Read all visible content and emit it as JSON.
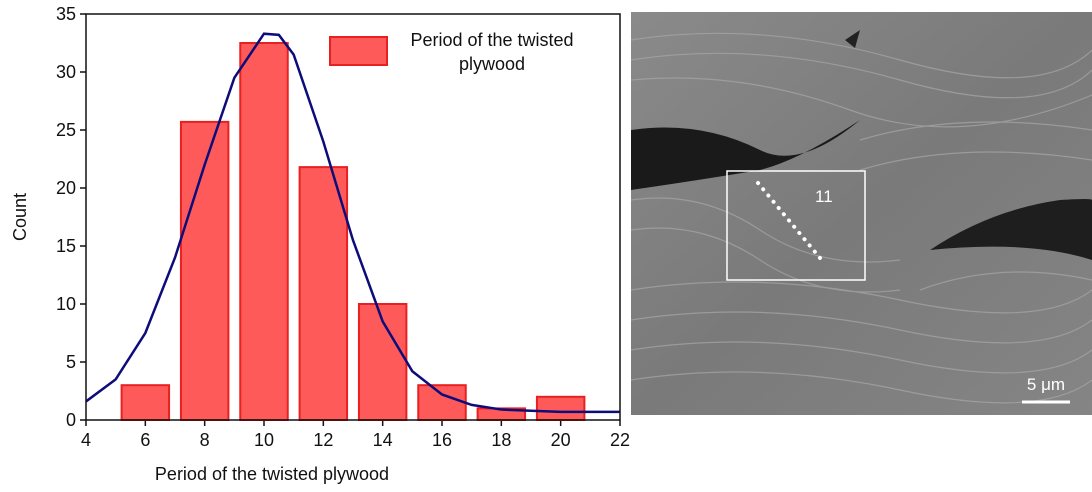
{
  "chart_data": {
    "type": "histogram",
    "bins": [
      5,
      7,
      9,
      11,
      13,
      15,
      17,
      19,
      21
    ],
    "series": [
      {
        "name": "Period of the twisted plywood",
        "color": "#ff5a5a",
        "edge_color": "#e8201f",
        "values": [
          3,
          25.7,
          32.5,
          21.8,
          10,
          3,
          1,
          2
        ]
      }
    ],
    "fit": {
      "color": "#0d0d7a",
      "x": [
        4,
        5,
        6,
        7,
        8,
        9,
        10,
        10.5,
        11,
        12,
        13,
        14,
        15,
        16,
        17,
        18,
        19,
        20,
        21,
        22
      ],
      "values": [
        1.6,
        3.5,
        7.5,
        14,
        22,
        29.5,
        33.3,
        33.2,
        31.5,
        24,
        15.5,
        8.5,
        4.2,
        2.2,
        1.3,
        0.9,
        0.8,
        0.7,
        0.7,
        0.7
      ]
    },
    "x_label": "Period of the twisted plywood",
    "y_label": "Count",
    "xlim": [
      4,
      22
    ],
    "xticks": [
      4,
      6,
      8,
      10,
      12,
      14,
      16,
      18,
      20,
      22
    ],
    "ylim": [
      0,
      35
    ],
    "yticks": [
      0,
      5,
      10,
      15,
      20,
      25,
      30,
      35
    ],
    "legend": "upper-right"
  },
  "image": {
    "annotation": "11",
    "scale_bar": "5 μm"
  }
}
